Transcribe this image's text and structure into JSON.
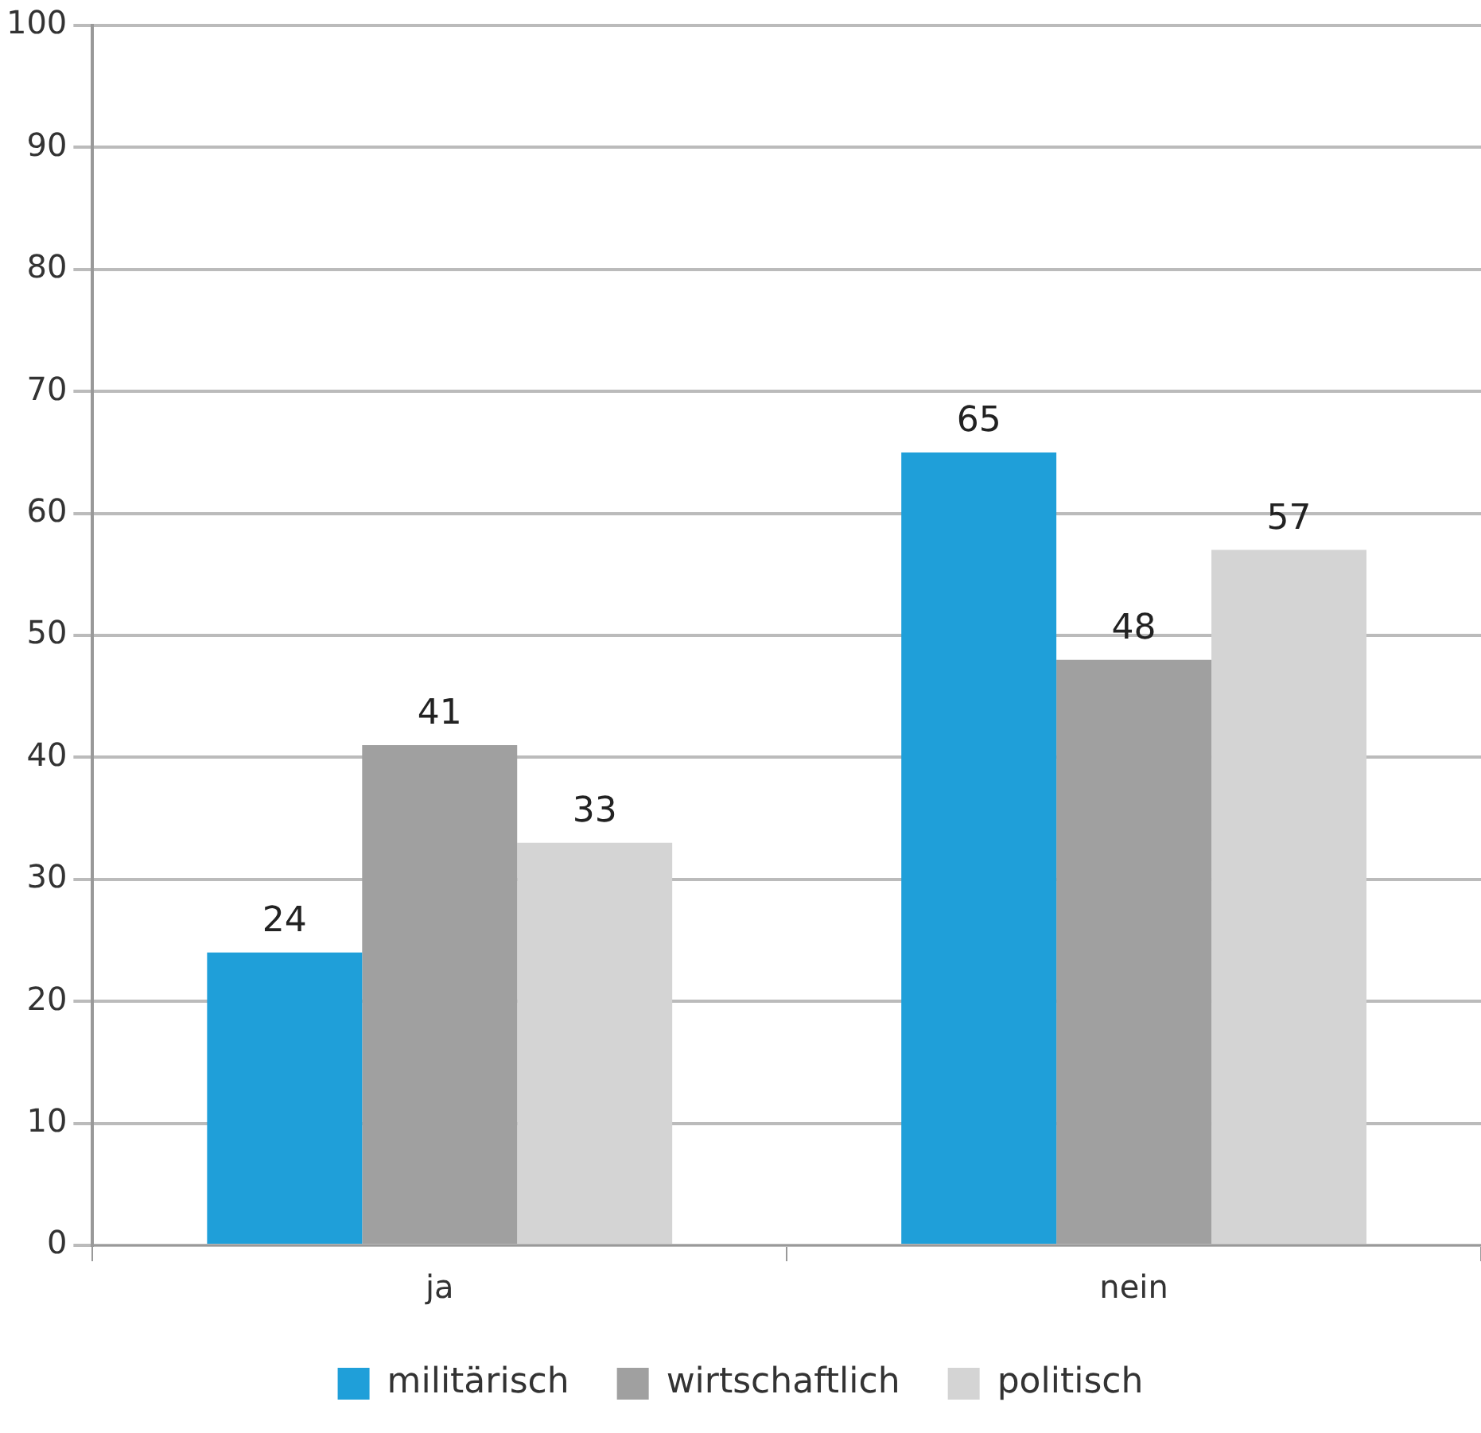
{
  "chart_data": {
    "type": "bar",
    "categories": [
      "ja",
      "nein"
    ],
    "series": [
      {
        "name": "militärisch",
        "color": "#1f9fd9",
        "values": [
          24,
          65
        ]
      },
      {
        "name": "wirtschaftlich",
        "color": "#a0a0a0",
        "values": [
          41,
          48
        ]
      },
      {
        "name": "politisch",
        "color": "#d4d4d4",
        "values": [
          33,
          57
        ]
      }
    ],
    "ylim": [
      0,
      100
    ],
    "yticks": [
      0,
      10,
      20,
      30,
      40,
      50,
      60,
      70,
      80,
      90,
      100
    ],
    "grid": "y",
    "legend": "bottom",
    "data_labels": true
  }
}
